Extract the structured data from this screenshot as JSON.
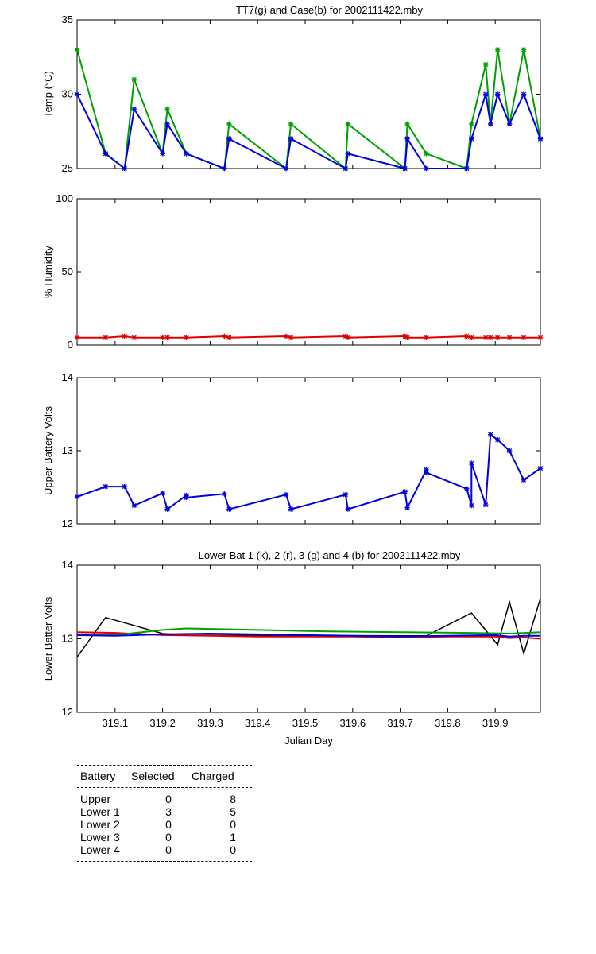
{
  "colors": {
    "green": "#00a000",
    "blue": "#0000e0",
    "red": "#e00000",
    "black": "#000000"
  },
  "chart_data": [
    {
      "type": "line",
      "title": "TT7(g) and Case(b) for 2002111422.mby",
      "xlabel": "",
      "ylabel": "Temp  (°C)",
      "xlim": [
        319.02,
        319.995
      ],
      "ylim": [
        25,
        35
      ],
      "yticks": [
        25,
        30,
        35
      ],
      "grid": false,
      "series": [
        {
          "name": "TT7",
          "color": "green",
          "marker": true,
          "x": [
            319.02,
            319.08,
            319.12,
            319.14,
            319.2,
            319.21,
            319.25,
            319.33,
            319.34,
            319.46,
            319.47,
            319.585,
            319.59,
            319.71,
            319.715,
            319.755,
            319.84,
            319.85,
            319.88,
            319.89,
            319.905,
            319.93,
            319.96,
            319.995
          ],
          "y": [
            33,
            26,
            25,
            31,
            26,
            29,
            26,
            25,
            28,
            25,
            28,
            25,
            28,
            25,
            28,
            26,
            25,
            28,
            32,
            28,
            33,
            28,
            33,
            27
          ]
        },
        {
          "name": "Case",
          "color": "blue",
          "marker": true,
          "x": [
            319.02,
            319.08,
            319.12,
            319.14,
            319.2,
            319.21,
            319.25,
            319.33,
            319.34,
            319.46,
            319.47,
            319.585,
            319.59,
            319.71,
            319.715,
            319.755,
            319.84,
            319.85,
            319.88,
            319.89,
            319.905,
            319.93,
            319.96,
            319.995
          ],
          "y": [
            30,
            26,
            25,
            29,
            26,
            28,
            26,
            25,
            27,
            25,
            27,
            25,
            26,
            25,
            27,
            25,
            25,
            27,
            30,
            28,
            30,
            28,
            30,
            27
          ]
        }
      ]
    },
    {
      "type": "line",
      "title": "",
      "xlabel": "",
      "ylabel": "% Humidity",
      "xlim": [
        319.02,
        319.995
      ],
      "ylim": [
        0,
        100
      ],
      "yticks": [
        0,
        50,
        100
      ],
      "grid": false,
      "series": [
        {
          "color": "red",
          "marker": true,
          "x": [
            319.02,
            319.08,
            319.12,
            319.14,
            319.2,
            319.21,
            319.25,
            319.33,
            319.34,
            319.46,
            319.47,
            319.585,
            319.59,
            319.71,
            319.715,
            319.755,
            319.84,
            319.85,
            319.88,
            319.89,
            319.905,
            319.93,
            319.96,
            319.995
          ],
          "y": [
            5,
            5,
            6,
            5,
            5,
            5,
            5,
            6,
            5,
            6,
            5,
            6,
            5,
            6,
            5,
            5,
            6,
            5,
            5,
            5,
            5,
            5,
            5,
            5
          ]
        }
      ]
    },
    {
      "type": "line",
      "title": "",
      "xlabel": "",
      "ylabel": "Upper Battery Volts",
      "xlim": [
        319.02,
        319.995
      ],
      "ylim": [
        12,
        14
      ],
      "yticks": [
        12,
        13,
        14
      ],
      "grid": false,
      "series": [
        {
          "color": "blue",
          "marker": true,
          "x": [
            319.02,
            319.08,
            319.12,
            319.14,
            319.2,
            319.21,
            319.25,
            319.25,
            319.33,
            319.34,
            319.46,
            319.47,
            319.585,
            319.59,
            319.71,
            319.715,
            319.755,
            319.755,
            319.84,
            319.85,
            319.85,
            319.88,
            319.89,
            319.905,
            319.93,
            319.96,
            319.995
          ],
          "y": [
            12.37,
            12.51,
            12.51,
            12.25,
            12.42,
            12.2,
            12.39,
            12.36,
            12.41,
            12.2,
            12.4,
            12.2,
            12.4,
            12.2,
            12.44,
            12.22,
            12.74,
            12.7,
            12.48,
            12.25,
            12.83,
            12.26,
            13.22,
            13.15,
            13.0,
            12.6,
            12.76
          ]
        }
      ]
    },
    {
      "type": "line",
      "title": "Lower Bat 1 (k), 2 (r), 3 (g) and 4 (b) for 2002111422.mby",
      "xlabel": "Julian Day",
      "ylabel": "Lower Batter Volts",
      "xlim": [
        319.02,
        319.995
      ],
      "ylim": [
        12,
        14
      ],
      "yticks": [
        12,
        13,
        14
      ],
      "xticks": [
        319.1,
        319.2,
        319.3,
        319.4,
        319.5,
        319.6,
        319.7,
        319.8,
        319.9
      ],
      "xticklabels": [
        "319.1",
        "319.2",
        "319.3",
        "319.4",
        "319.5",
        "319.6",
        "319.7",
        "319.8",
        "319.9"
      ],
      "grid": false,
      "series": [
        {
          "color": "black",
          "marker": false,
          "x": [
            319.02,
            319.08,
            319.2,
            319.25,
            319.755,
            319.85,
            319.905,
            319.93,
            319.96,
            319.995
          ],
          "y": [
            12.75,
            13.29,
            13.07,
            13.05,
            13.04,
            13.35,
            12.92,
            13.5,
            12.8,
            13.55
          ]
        },
        {
          "color": "red",
          "marker": false,
          "x": [
            319.02,
            319.1,
            319.2,
            319.3,
            319.4,
            319.5,
            319.6,
            319.7,
            319.8,
            319.9,
            319.93,
            319.96,
            319.995
          ],
          "y": [
            13.09,
            13.08,
            13.05,
            13.04,
            13.03,
            13.03,
            13.03,
            13.02,
            13.03,
            13.03,
            13.01,
            13.02,
            13.0
          ]
        },
        {
          "color": "green",
          "marker": false,
          "x": [
            319.02,
            319.1,
            319.2,
            319.25,
            319.4,
            319.55,
            319.7,
            319.85,
            319.93,
            319.995
          ],
          "y": [
            13.05,
            13.05,
            13.12,
            13.14,
            13.12,
            13.1,
            13.09,
            13.08,
            13.07,
            13.09
          ]
        },
        {
          "color": "blue",
          "marker": false,
          "x": [
            319.02,
            319.1,
            319.2,
            319.3,
            319.4,
            319.5,
            319.6,
            319.7,
            319.8,
            319.9,
            319.93,
            319.96,
            319.995
          ],
          "y": [
            13.05,
            13.04,
            13.06,
            13.07,
            13.06,
            13.05,
            13.04,
            13.03,
            13.04,
            13.05,
            13.03,
            13.04,
            13.04
          ]
        }
      ]
    }
  ],
  "battery_table": {
    "headers": [
      "Battery",
      "Selected",
      "Charged"
    ],
    "rows": [
      {
        "battery": "Upper",
        "selected": "0",
        "charged": "8"
      },
      {
        "battery": "Lower 1",
        "selected": "3",
        "charged": "5"
      },
      {
        "battery": "Lower 2",
        "selected": "0",
        "charged": "0"
      },
      {
        "battery": "Lower 3",
        "selected": "0",
        "charged": "1"
      },
      {
        "battery": "Lower 4",
        "selected": "0",
        "charged": "0"
      }
    ]
  }
}
